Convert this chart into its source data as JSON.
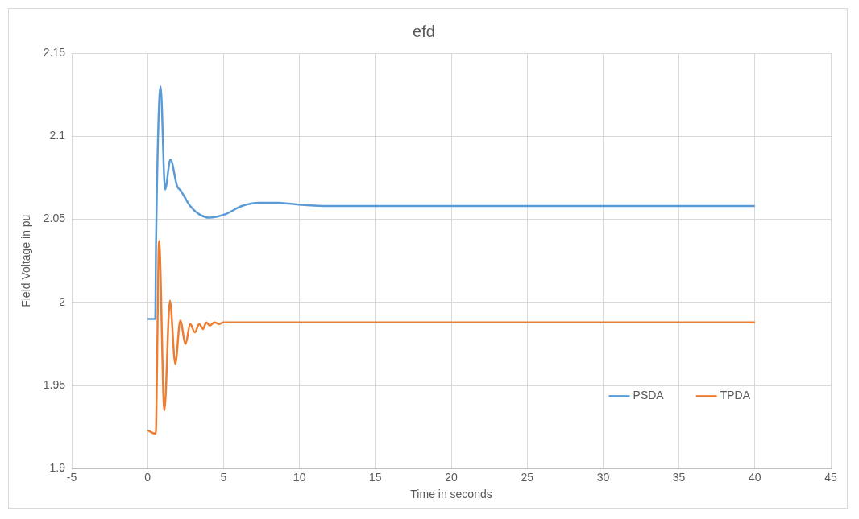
{
  "chart_data": {
    "type": "line",
    "title": "efd",
    "xlabel": "Time in seconds",
    "ylabel": "Field Voltage in pu",
    "xlim": [
      -5,
      45
    ],
    "xticks": [
      -5,
      0,
      5,
      10,
      15,
      20,
      25,
      30,
      35,
      40,
      45
    ],
    "ylim": [
      1.9,
      2.15
    ],
    "yticks": [
      1.9,
      1.95,
      2,
      2.05,
      2.1,
      2.15
    ],
    "grid": true,
    "legend": "bottom right",
    "marker": "none",
    "line_style": "solid",
    "series": [
      {
        "name": "PSDA",
        "color": "#5b9bd5",
        "x": [
          0,
          0.5,
          0.55,
          0.85,
          1.15,
          1.5,
          1.94,
          2.2,
          2.8,
          3.4,
          4.04,
          5.1,
          6.2,
          7.35,
          8.5,
          9.8,
          12,
          15,
          20,
          25,
          30,
          35,
          40
        ],
        "values": [
          1.99,
          1.99,
          2.035,
          2.13,
          2.068,
          2.086,
          2.07,
          2.067,
          2.058,
          2.053,
          2.051,
          2.053,
          2.058,
          2.06,
          2.06,
          2.059,
          2.058,
          2.058,
          2.058,
          2.058,
          2.058,
          2.058,
          2.058
        ]
      },
      {
        "name": "TPDA",
        "color": "#ed7d31",
        "x": [
          0,
          0.54,
          0.6,
          0.75,
          1.1,
          1.47,
          1.82,
          2.15,
          2.5,
          2.8,
          3.11,
          3.4,
          3.64,
          3.87,
          4.1,
          4.4,
          4.7,
          5,
          6,
          10,
          20,
          30,
          40
        ],
        "values": [
          1.923,
          1.921,
          1.95,
          2.037,
          1.935,
          2.001,
          1.963,
          1.989,
          1.975,
          1.987,
          1.982,
          1.987,
          1.984,
          1.988,
          1.986,
          1.988,
          1.987,
          1.988,
          1.988,
          1.988,
          1.988,
          1.988,
          1.988
        ]
      }
    ]
  }
}
